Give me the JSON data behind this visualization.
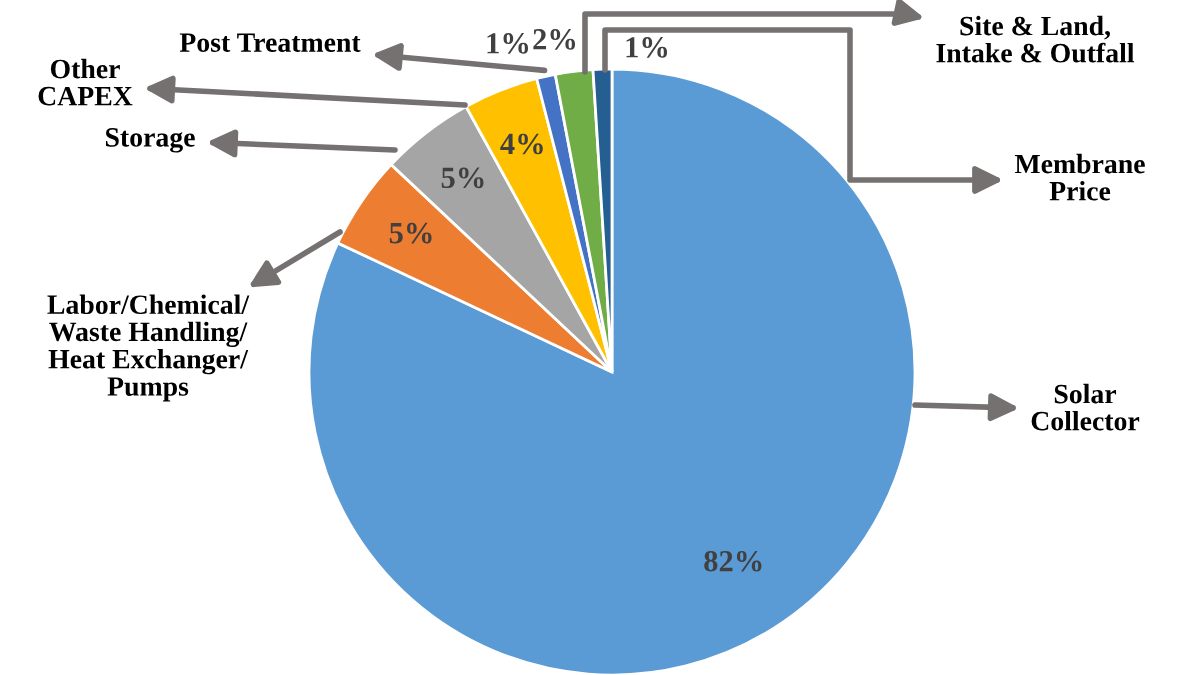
{
  "chart_data": {
    "type": "pie",
    "categories": [
      "Solar\nCollector",
      "Labor/Chemical/\nWaste Handling/\nHeat Exchanger/\nPumps",
      "Storage",
      "Other\nCAPEX",
      "Post Treatment",
      "Site & Land,\nIntake & Outfall",
      "Membrane\nPrice"
    ],
    "values": [
      82,
      5,
      5,
      4,
      1,
      2,
      1
    ],
    "value_labels": [
      "82%",
      "5%",
      "5%",
      "4%",
      "1%",
      "2%",
      "1%"
    ],
    "colors": [
      "#5b9bd5",
      "#ed7d31",
      "#a5a5a5",
      "#ffc000",
      "#4472c4",
      "#70ad47",
      "#255e91"
    ],
    "legend": false
  }
}
